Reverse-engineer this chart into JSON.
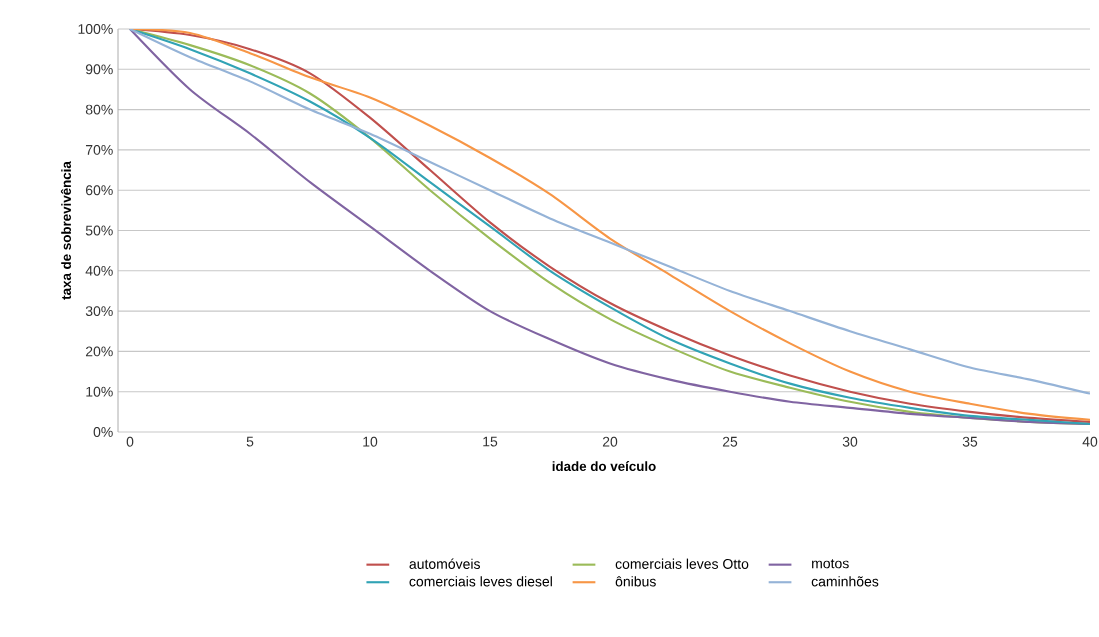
{
  "chart_data": {
    "type": "line",
    "xlabel": "idade do veículo",
    "ylabel": "taxa de sobrevivência",
    "x": [
      0,
      2.5,
      5,
      7.5,
      10,
      12.5,
      15,
      17.5,
      20,
      22.5,
      25,
      27.5,
      30,
      32.5,
      35,
      37.5,
      40
    ],
    "series": [
      {
        "name": "automóveis",
        "color": "#c0504d",
        "values": [
          100,
          98.5,
          95,
          89,
          78,
          65,
          52,
          41,
          32,
          25,
          19,
          14,
          10,
          7,
          5,
          3.5,
          2.5
        ]
      },
      {
        "name": "comerciais leves Otto",
        "color": "#9bbb59",
        "values": [
          100,
          96,
          91,
          84,
          73,
          60,
          48,
          37,
          28,
          21,
          15,
          11,
          7.5,
          5,
          3.5,
          2.5,
          2
        ]
      },
      {
        "name": "motos",
        "color": "#8064a2",
        "values": [
          100,
          85,
          74,
          62,
          51,
          40,
          30,
          23,
          17,
          13,
          10,
          7.5,
          6,
          4.5,
          3.5,
          2.5,
          2
        ]
      },
      {
        "name": "comerciais  leves diesel",
        "color": "#31a3b5",
        "values": [
          100,
          95,
          89,
          82,
          73,
          62,
          51,
          40,
          31,
          23,
          17,
          12,
          8.5,
          6,
          4,
          3,
          2
        ]
      },
      {
        "name": "ônibus",
        "color": "#f79646",
        "values": [
          100,
          99,
          94,
          88,
          83,
          76,
          68,
          59,
          48,
          39,
          30,
          22,
          15,
          10,
          7,
          4.5,
          3
        ]
      },
      {
        "name": "caminhões",
        "color": "#95b3d7",
        "values": [
          100,
          93,
          87,
          80,
          74,
          67,
          60,
          53,
          47,
          41,
          35,
          30,
          25,
          20.5,
          16,
          13,
          9.5
        ]
      }
    ],
    "xlim": [
      -0.5,
      40
    ],
    "xticks": [
      0,
      5,
      10,
      15,
      20,
      25,
      30,
      35,
      40
    ],
    "ylim": [
      0,
      100
    ],
    "yticks": [
      {
        "value": 0,
        "label": "0%"
      },
      {
        "value": 10,
        "label": "10%"
      },
      {
        "value": 20,
        "label": "20%"
      },
      {
        "value": 30,
        "label": "30%"
      },
      {
        "value": 40,
        "label": "40%"
      },
      {
        "value": 50,
        "label": "50%"
      },
      {
        "value": 60,
        "label": "60%"
      },
      {
        "value": 70,
        "label": "70%"
      },
      {
        "value": 80,
        "label": "80%"
      },
      {
        "value": 90,
        "label": "90%"
      },
      {
        "value": 100,
        "label": "100%"
      }
    ],
    "grid": "y",
    "legend": "bottom",
    "marker": "none",
    "line_style": "solid"
  }
}
